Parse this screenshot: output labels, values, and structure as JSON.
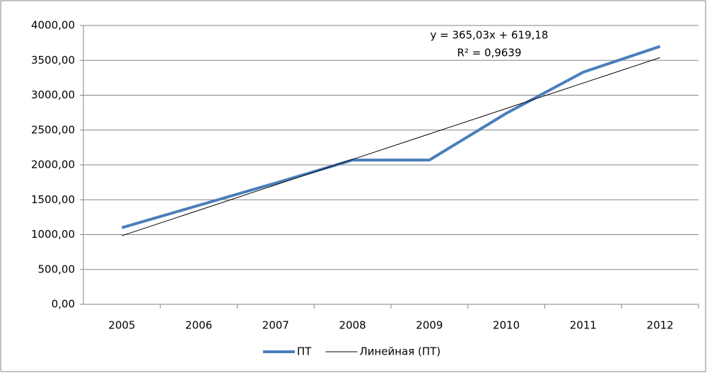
{
  "chart_data": {
    "type": "line",
    "categories": [
      "2005",
      "2006",
      "2007",
      "2008",
      "2009",
      "2010",
      "2011",
      "2012"
    ],
    "series": [
      {
        "name": "ПТ",
        "color": "#4a7ebb",
        "values": [
          1100,
          1420,
          1740,
          2070,
          2070,
          2740,
          3330,
          3700
        ]
      },
      {
        "name": "Линейная (ПТ)",
        "color": "#000000",
        "values": [
          984.21,
          1349.24,
          1714.27,
          2079.3,
          2444.33,
          2809.36,
          3174.39,
          3539.42
        ]
      }
    ],
    "ylim": [
      0,
      4000
    ],
    "yticks": [
      {
        "value": 0,
        "label": "0,00"
      },
      {
        "value": 500,
        "label": "500,00"
      },
      {
        "value": 1000,
        "label": "1000,00"
      },
      {
        "value": 1500,
        "label": "1500,00"
      },
      {
        "value": 2000,
        "label": "2000,00"
      },
      {
        "value": 2500,
        "label": "2500,00"
      },
      {
        "value": 3000,
        "label": "3000,00"
      },
      {
        "value": 3500,
        "label": "3500,00"
      },
      {
        "value": 4000,
        "label": "4000,00"
      }
    ],
    "grid": true,
    "annotations": [
      "y = 365,03x + 619,18",
      "R² = 0,9639"
    ],
    "legend": "bottom"
  }
}
